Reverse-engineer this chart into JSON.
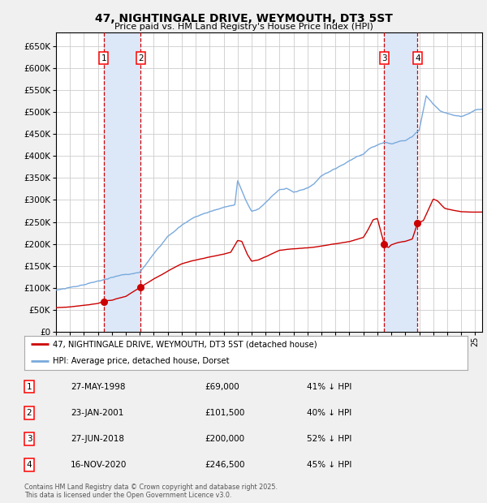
{
  "title": "47, NIGHTINGALE DRIVE, WEYMOUTH, DT3 5ST",
  "subtitle": "Price paid vs. HM Land Registry's House Price Index (HPI)",
  "ylim": [
    0,
    680000
  ],
  "yticks": [
    0,
    50000,
    100000,
    150000,
    200000,
    250000,
    300000,
    350000,
    400000,
    450000,
    500000,
    550000,
    600000,
    650000
  ],
  "background_color": "#f0f0f0",
  "plot_bg_color": "#ffffff",
  "grid_color": "#cccccc",
  "red_line_color": "#cc0000",
  "blue_line_color": "#7aaadd",
  "shade_color": "#dce8f8",
  "dashed_color": "#cc0000",
  "sale_dates": [
    1998.41,
    2001.06,
    2018.49,
    2020.88
  ],
  "sale_prices": [
    69000,
    101500,
    200000,
    246500
  ],
  "sale_labels": [
    "1",
    "2",
    "3",
    "4"
  ],
  "legend_labels": [
    "47, NIGHTINGALE DRIVE, WEYMOUTH, DT3 5ST (detached house)",
    "HPI: Average price, detached house, Dorset"
  ],
  "table_data": [
    [
      "1",
      "27-MAY-1998",
      "£69,000",
      "41% ↓ HPI"
    ],
    [
      "2",
      "23-JAN-2001",
      "£101,500",
      "40% ↓ HPI"
    ],
    [
      "3",
      "27-JUN-2018",
      "£200,000",
      "52% ↓ HPI"
    ],
    [
      "4",
      "16-NOV-2020",
      "£246,500",
      "45% ↓ HPI"
    ]
  ],
  "footnote": "Contains HM Land Registry data © Crown copyright and database right 2025.\nThis data is licensed under the Open Government Licence v3.0.",
  "xmin": 1995.0,
  "xmax": 2025.5
}
